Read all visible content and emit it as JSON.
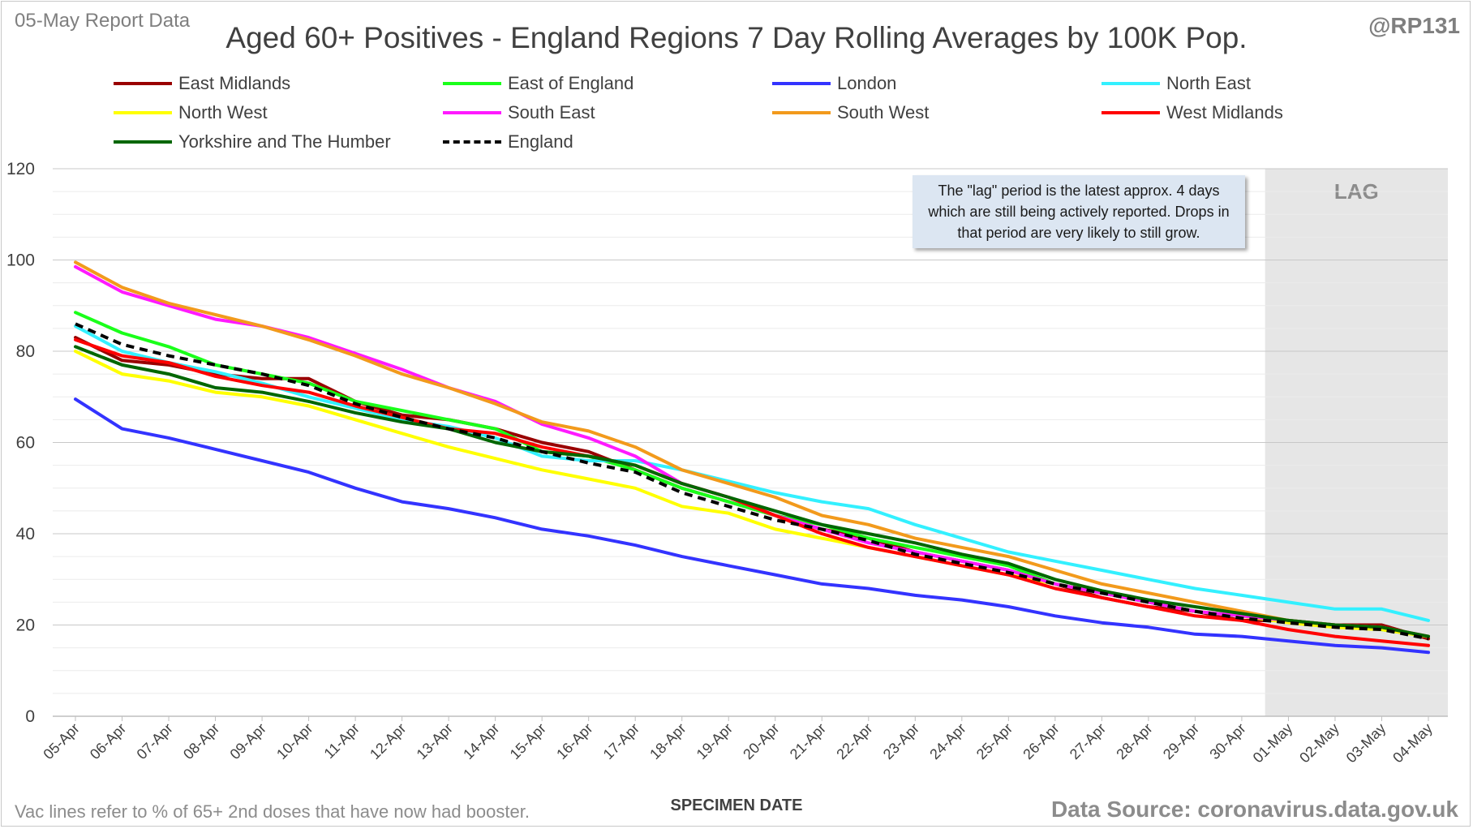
{
  "header": {
    "report_label": "05-May Report Data",
    "title": "Aged 60+ Positives - England Regions 7 Day Rolling Averages by 100K Pop.",
    "handle": "@RP131"
  },
  "footer": {
    "vac_note": "Vac lines refer to % of 65+ 2nd doses that have now had booster.",
    "source": "Data Source: coronavirus.data.gov.uk"
  },
  "lag_note": "The \"lag\" period is the latest approx. 4 days which are still being actively reported. Drops in that period are very likely to still grow.",
  "chart_data": {
    "type": "line",
    "title": "Aged 60+ Positives - England Regions 7 Day Rolling Averages by 100K Pop.",
    "xlabel": "SPECIMEN DATE",
    "ylabel": "",
    "ylim": [
      0,
      120
    ],
    "yticks": [
      0,
      20,
      40,
      60,
      80,
      100,
      120
    ],
    "grid": true,
    "legend_position": "top",
    "lag_region": {
      "start": "30-Apr",
      "end": "04-May",
      "label": "LAG"
    },
    "x": [
      "05-Apr",
      "06-Apr",
      "07-Apr",
      "08-Apr",
      "09-Apr",
      "10-Apr",
      "11-Apr",
      "12-Apr",
      "13-Apr",
      "14-Apr",
      "15-Apr",
      "16-Apr",
      "17-Apr",
      "18-Apr",
      "19-Apr",
      "20-Apr",
      "21-Apr",
      "22-Apr",
      "23-Apr",
      "24-Apr",
      "25-Apr",
      "26-Apr",
      "27-Apr",
      "28-Apr",
      "29-Apr",
      "30-Apr",
      "01-May",
      "02-May",
      "03-May",
      "04-May"
    ],
    "series": [
      {
        "name": "East Midlands",
        "color": "#990000",
        "dash": false,
        "values": [
          83,
          78,
          77,
          75,
          74,
          74,
          69,
          66,
          65,
          63,
          60,
          58,
          54,
          50,
          47,
          44,
          41,
          39,
          36,
          34,
          32,
          29,
          26,
          24,
          23,
          21,
          21,
          20,
          20,
          17
        ]
      },
      {
        "name": "East of England",
        "color": "#1aff1a",
        "dash": false,
        "values": [
          88.5,
          84,
          81,
          77,
          75,
          73,
          69,
          67,
          65,
          63,
          58,
          57,
          54,
          50,
          47,
          44,
          42,
          39,
          37,
          35,
          33,
          29,
          27,
          25,
          23,
          22,
          21,
          20,
          19,
          17.5
        ]
      },
      {
        "name": "London",
        "color": "#3333ff",
        "dash": false,
        "values": [
          69.5,
          63,
          61,
          58.5,
          56,
          53.5,
          50,
          47,
          45.5,
          43.5,
          41,
          39.5,
          37.5,
          35,
          33,
          31,
          29,
          28,
          26.5,
          25.5,
          24,
          22,
          20.5,
          19.5,
          18,
          17.5,
          16.5,
          15.5,
          15,
          14
        ]
      },
      {
        "name": "North East",
        "color": "#33f0ff",
        "dash": false,
        "values": [
          85.5,
          80,
          77.5,
          75.5,
          73,
          70,
          67.5,
          65,
          63.5,
          61,
          57,
          56,
          56,
          54,
          51.5,
          49,
          47,
          45.5,
          42,
          39,
          36,
          34,
          32,
          30,
          28,
          26.5,
          25,
          23.5,
          23.5,
          21
        ]
      },
      {
        "name": "North West",
        "color": "#ffff00",
        "dash": false,
        "values": [
          80,
          75,
          73.5,
          71,
          70,
          68,
          65,
          62,
          59,
          56.5,
          54,
          52,
          50,
          46,
          44.5,
          41,
          39,
          37,
          35,
          33,
          31,
          29,
          27,
          25,
          23,
          22,
          20.5,
          19.5,
          19,
          17.5
        ]
      },
      {
        "name": "South East",
        "color": "#ff1aff",
        "dash": false,
        "values": [
          98.5,
          93,
          90,
          87,
          85.5,
          83,
          79.5,
          76,
          72,
          69,
          64,
          61,
          57,
          51,
          48,
          44,
          41,
          38,
          36,
          34,
          32,
          29,
          27,
          25,
          23,
          22,
          21,
          20,
          19.5,
          17.5
        ]
      },
      {
        "name": "South West",
        "color": "#f29a1c",
        "dash": false,
        "values": [
          99.5,
          94,
          90.5,
          88,
          85.5,
          82.5,
          79,
          75,
          72,
          68.5,
          64.5,
          62.5,
          59,
          54,
          51,
          48,
          44,
          42,
          39,
          37,
          35,
          32,
          29,
          27,
          25,
          23,
          21,
          20,
          19.5,
          17.5
        ]
      },
      {
        "name": "West Midlands",
        "color": "#ff0000",
        "dash": false,
        "values": [
          82.5,
          79,
          77.5,
          74.5,
          72.5,
          71,
          68,
          65.5,
          63,
          62,
          59,
          57,
          55,
          51,
          48,
          44,
          40,
          37,
          35,
          33,
          31,
          28,
          26,
          24,
          22,
          21,
          19,
          17.5,
          16.5,
          15.5
        ]
      },
      {
        "name": "Yorkshire and The Humber",
        "color": "#006600",
        "dash": false,
        "values": [
          81,
          77,
          75,
          72,
          71,
          69,
          66.5,
          64.5,
          63,
          60,
          58,
          57,
          55,
          51,
          48,
          45,
          42,
          40,
          38,
          35.5,
          33.5,
          30,
          27.5,
          25.5,
          24,
          22.5,
          21,
          20,
          19.5,
          17.5
        ]
      },
      {
        "name": "England",
        "color": "#000000",
        "dash": true,
        "values": [
          86,
          81.5,
          79,
          77,
          75,
          72.5,
          68.5,
          65.5,
          63,
          61,
          58,
          55.5,
          53.5,
          49,
          46,
          43,
          41,
          38.5,
          35.5,
          33.5,
          31.5,
          29,
          27,
          25,
          23,
          21.5,
          20.5,
          19.5,
          19,
          17
        ]
      }
    ]
  }
}
